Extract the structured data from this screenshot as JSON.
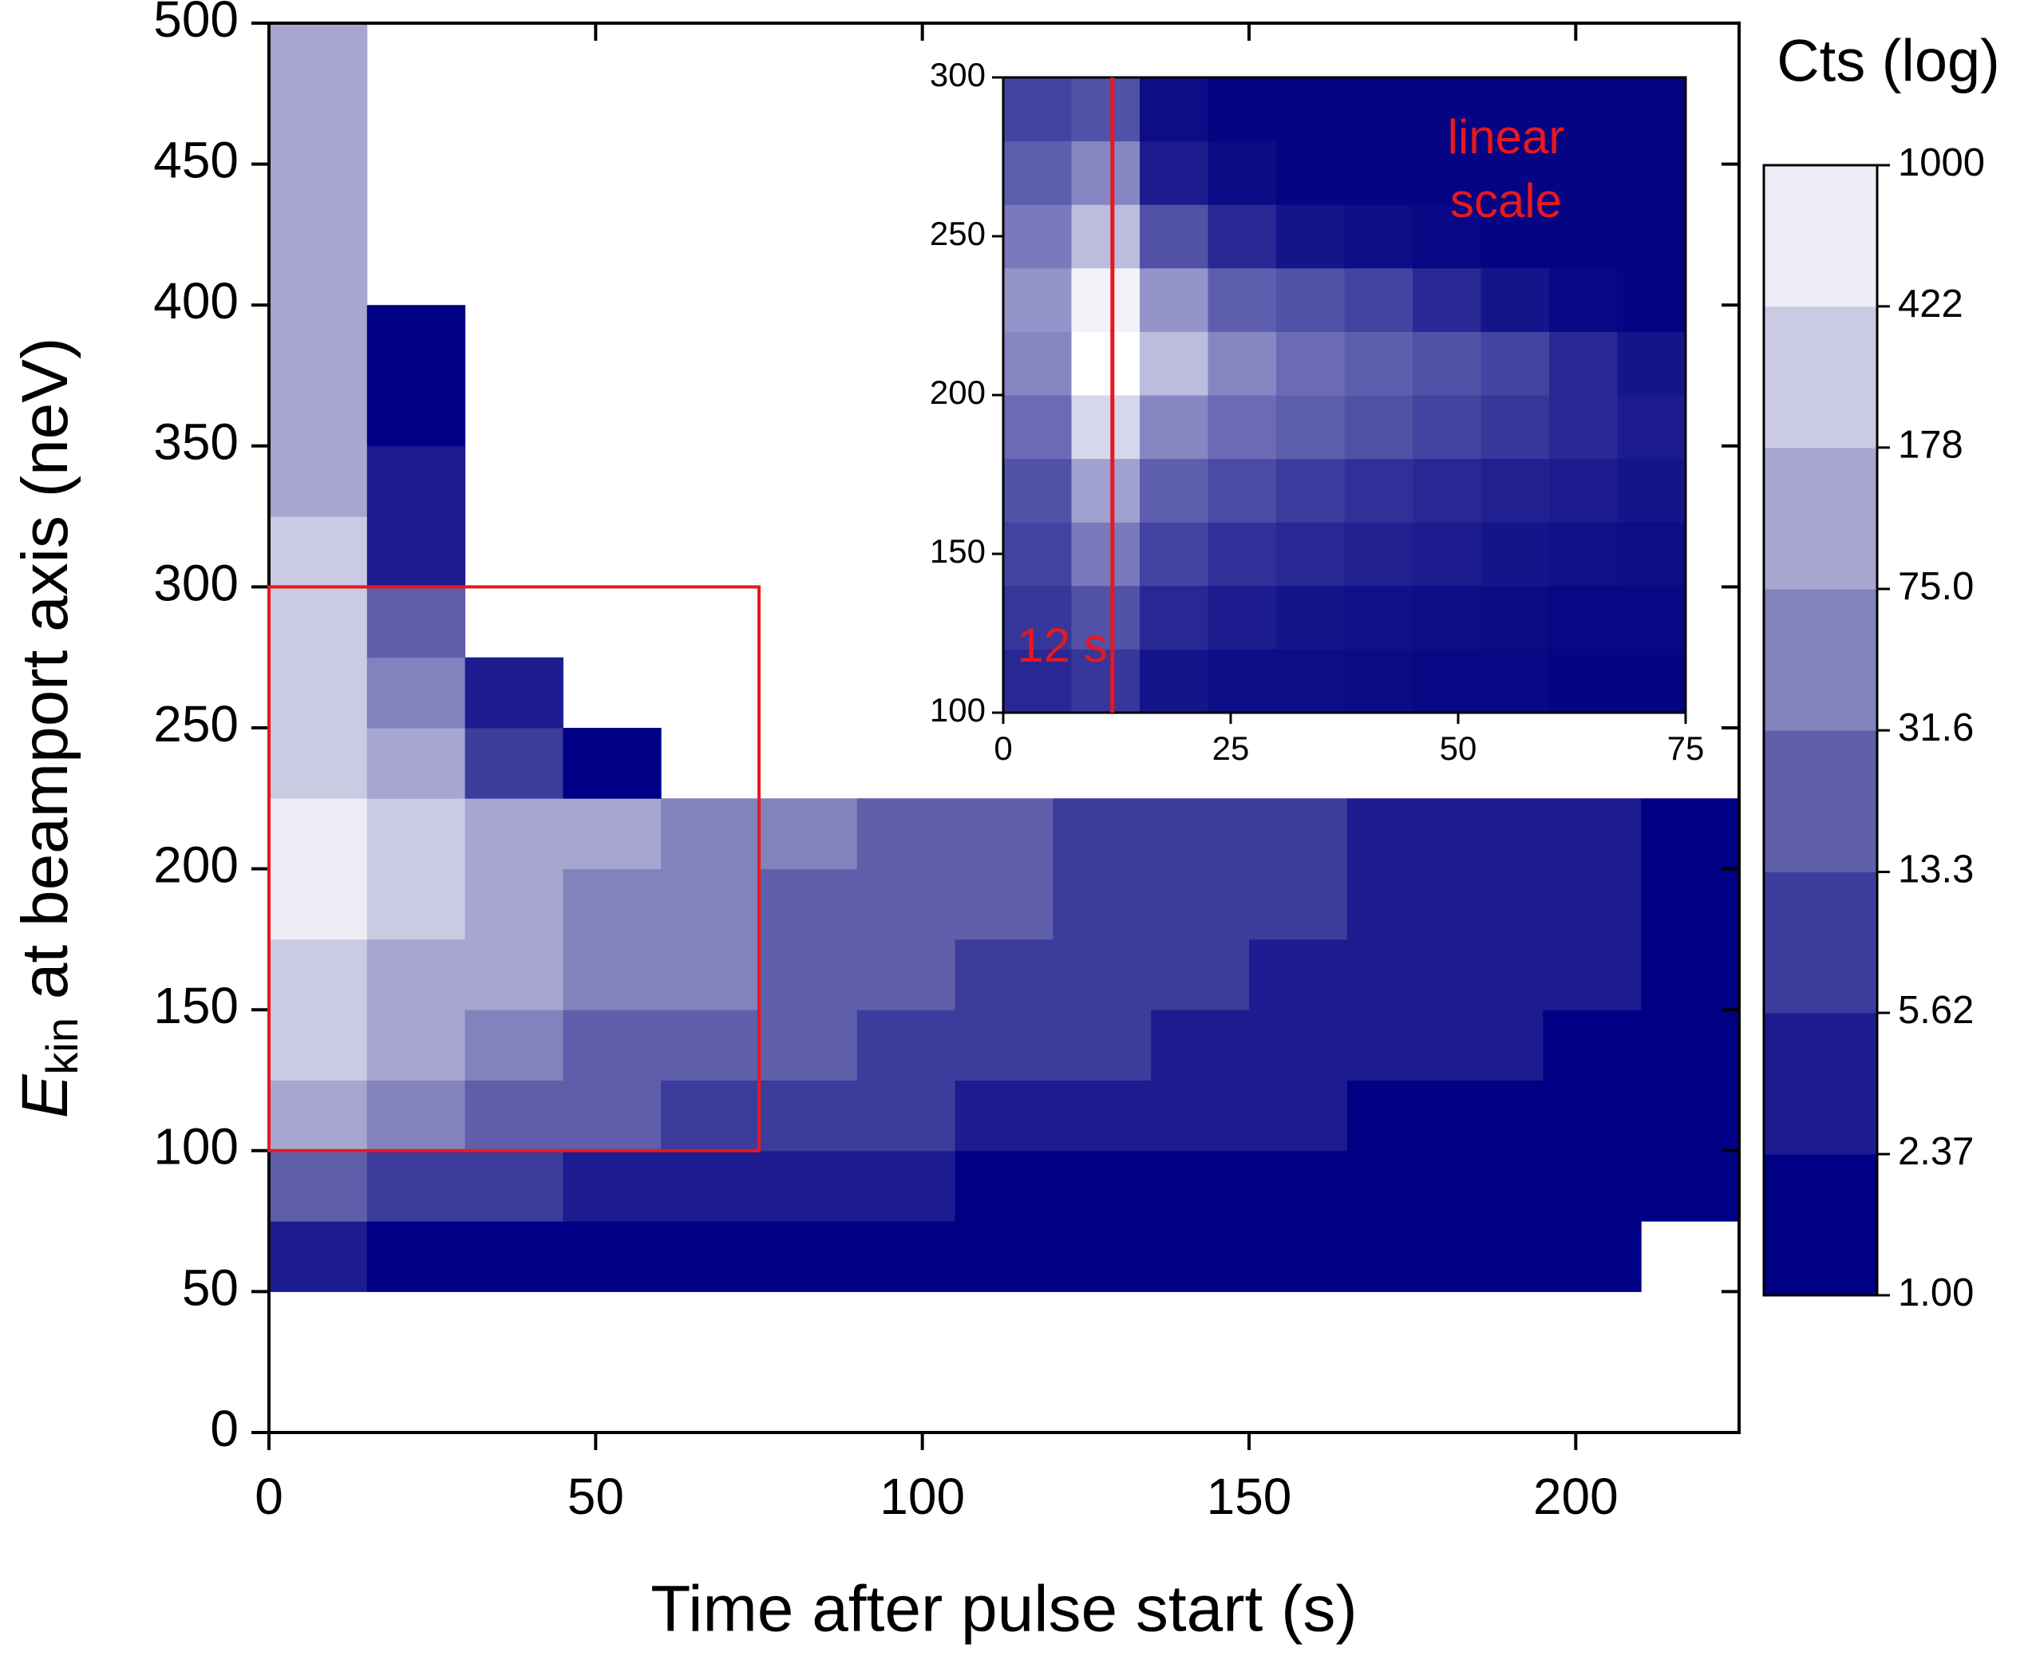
{
  "chart_data": [
    {
      "type": "heatmap",
      "xlabel": "Time after pulse start (s)",
      "ylabel_parts": [
        "E",
        "kin",
        " at beamport axis (neV)"
      ],
      "xlim": [
        0,
        225
      ],
      "ylim": [
        0,
        500
      ],
      "xticks": [
        0,
        50,
        100,
        150,
        200
      ],
      "yticks": [
        0,
        50,
        100,
        150,
        200,
        250,
        300,
        350,
        400,
        450,
        500
      ],
      "xbins": [
        0,
        15,
        30,
        45,
        60,
        75,
        90,
        105,
        120,
        135,
        150,
        165,
        180,
        195,
        210,
        225
      ],
      "ybins": [
        0,
        25,
        50,
        75,
        100,
        125,
        150,
        175,
        200,
        225,
        250,
        275,
        300,
        325,
        350,
        375,
        400,
        425,
        450,
        475,
        500
      ],
      "z": [
        [
          null,
          null,
          null,
          null,
          null,
          null,
          null,
          null,
          null,
          null,
          null,
          null,
          null,
          null,
          null
        ],
        [
          null,
          null,
          null,
          null,
          null,
          null,
          null,
          null,
          null,
          null,
          null,
          null,
          null,
          null,
          null
        ],
        [
          3,
          2,
          2,
          2,
          1.5,
          1.5,
          1.5,
          1,
          1.5,
          1,
          1.5,
          1,
          1,
          1,
          null
        ],
        [
          20,
          8,
          6,
          5,
          4,
          3,
          3,
          2,
          2,
          2,
          2,
          1.5,
          1.5,
          1.5,
          1
        ],
        [
          100,
          40,
          25,
          15,
          12,
          9,
          7,
          5,
          4,
          3,
          3,
          2,
          2,
          2,
          1.5
        ],
        [
          200,
          80,
          50,
          30,
          20,
          15,
          10,
          8,
          6,
          5,
          4,
          3,
          2.5,
          2,
          2
        ],
        [
          300,
          120,
          80,
          50,
          35,
          25,
          15,
          10,
          8,
          6,
          5,
          4,
          3,
          2.5,
          2
        ],
        [
          500,
          250,
          120,
          70,
          45,
          30,
          20,
          14,
          10,
          8,
          6,
          5,
          3,
          3,
          2
        ],
        [
          500,
          300,
          150,
          80,
          50,
          35,
          25,
          15,
          10,
          8,
          6,
          5,
          4,
          3,
          2
        ],
        [
          400,
          80,
          10,
          2,
          null,
          null,
          null,
          null,
          null,
          null,
          null,
          null,
          null,
          null,
          null
        ],
        [
          300,
          40,
          3,
          null,
          null,
          null,
          null,
          null,
          null,
          null,
          null,
          null,
          null,
          null,
          null
        ],
        [
          250,
          15,
          null,
          null,
          null,
          null,
          null,
          null,
          null,
          null,
          null,
          null,
          null,
          null,
          null
        ],
        [
          200,
          5,
          null,
          null,
          null,
          null,
          null,
          null,
          null,
          null,
          null,
          null,
          null,
          null,
          null
        ],
        [
          150,
          3,
          null,
          null,
          null,
          null,
          null,
          null,
          null,
          null,
          null,
          null,
          null,
          null,
          null
        ],
        [
          120,
          2,
          null,
          null,
          null,
          null,
          null,
          null,
          null,
          null,
          null,
          null,
          null,
          null,
          null
        ],
        [
          100,
          1.5,
          null,
          null,
          null,
          null,
          null,
          null,
          null,
          null,
          null,
          null,
          null,
          null,
          null
        ],
        [
          100,
          null,
          null,
          null,
          null,
          null,
          null,
          null,
          null,
          null,
          null,
          null,
          null,
          null,
          null
        ],
        [
          100,
          null,
          null,
          null,
          null,
          null,
          null,
          null,
          null,
          null,
          null,
          null,
          null,
          null,
          null
        ],
        [
          100,
          null,
          null,
          null,
          null,
          null,
          null,
          null,
          null,
          null,
          null,
          null,
          null,
          null,
          null
        ],
        [
          100,
          null,
          null,
          null,
          null,
          null,
          null,
          null,
          null,
          null,
          null,
          null,
          null,
          null,
          null
        ]
      ],
      "colorbar": {
        "title": "Cts (log)",
        "log": true,
        "ticks": [
          {
            "value": 1,
            "label": "1.00"
          },
          2.37,
          5.62,
          13.3,
          31.6,
          {
            "value": 75,
            "label": "75.0"
          },
          178,
          422,
          1000
        ],
        "colors": [
          "#000085",
          "#1c1c90",
          "#3c3c9c",
          "#5e5eaa",
          "#8282bd",
          "#a6a6d0",
          "#cacae3",
          "#ececf5"
        ]
      },
      "zoom_box_color": "#e8181e"
    },
    {
      "type": "heatmap-linear",
      "annotation_lines": [
        "linear",
        "scale"
      ],
      "annotation_color": "#e8181e",
      "marker_line": {
        "x": 12,
        "label": "12 s",
        "color": "#e8181e"
      },
      "xlim": [
        0,
        75
      ],
      "ylim": [
        100,
        300
      ],
      "xticks": [
        0,
        25,
        50,
        75
      ],
      "yticks": [
        100,
        150,
        200,
        250,
        300
      ],
      "colors": [
        "#000080",
        "#ffffff"
      ],
      "xbins": [
        0,
        7.5,
        15,
        22.5,
        30,
        37.5,
        45,
        52.5,
        60,
        67.5,
        75
      ],
      "ybins": [
        100,
        120,
        140,
        160,
        180,
        200,
        220,
        240,
        260,
        280,
        300
      ],
      "z": [
        [
          15,
          20,
          8,
          5,
          5,
          4,
          3,
          3,
          2,
          2
        ],
        [
          20,
          30,
          15,
          10,
          8,
          6,
          5,
          4,
          3,
          3
        ],
        [
          25,
          45,
          25,
          18,
          15,
          12,
          10,
          8,
          6,
          5
        ],
        [
          30,
          60,
          35,
          28,
          22,
          18,
          15,
          12,
          10,
          8
        ],
        [
          40,
          80,
          50,
          40,
          35,
          30,
          25,
          20,
          15,
          10
        ],
        [
          50,
          95,
          70,
          50,
          40,
          35,
          30,
          25,
          15,
          8
        ],
        [
          55,
          90,
          55,
          35,
          30,
          25,
          15,
          8,
          3,
          2
        ],
        [
          45,
          70,
          30,
          15,
          8,
          5,
          3,
          2,
          2,
          2
        ],
        [
          35,
          50,
          10,
          4,
          2,
          2,
          2,
          2,
          2,
          2
        ],
        [
          25,
          30,
          5,
          2,
          2,
          2,
          2,
          2,
          2,
          2
        ]
      ]
    }
  ]
}
